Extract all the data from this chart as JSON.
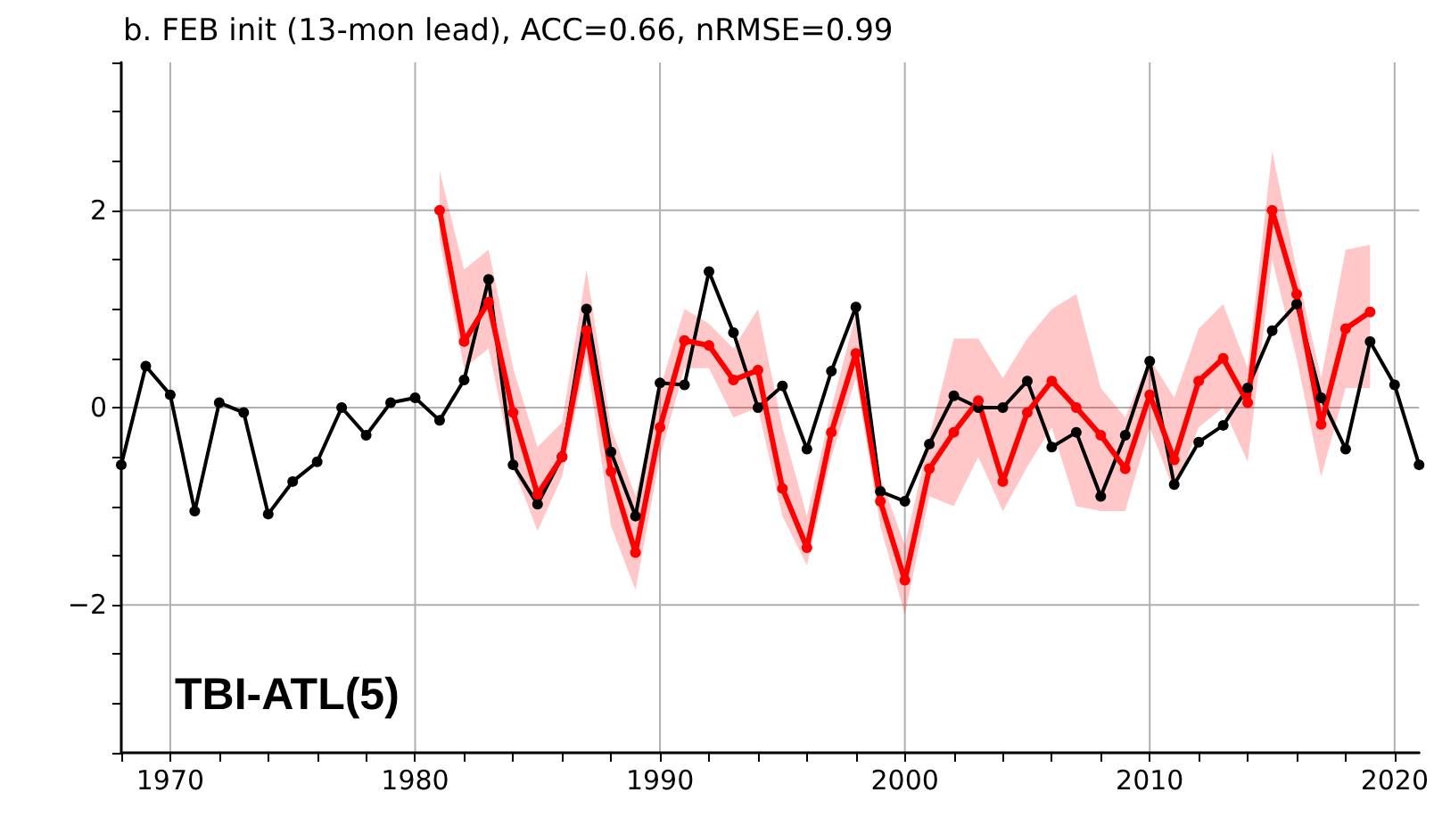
{
  "chart_data": {
    "type": "line",
    "title": "b. FEB init (13-mon lead), ACC=0.66, nRMSE=0.99",
    "annotations": [
      "TBI-ATL(5)"
    ],
    "xlim": [
      1968,
      2021
    ],
    "ylim": [
      -3.5,
      3.5
    ],
    "xticks": [
      {
        "value": 1968,
        "label": null
      },
      1970,
      {
        "value": 1972,
        "label": null
      },
      {
        "value": 1974,
        "label": null
      },
      {
        "value": 1976,
        "label": null
      },
      {
        "value": 1978,
        "label": null
      },
      1980,
      {
        "value": 1982,
        "label": null
      },
      {
        "value": 1984,
        "label": null
      },
      {
        "value": 1986,
        "label": null
      },
      {
        "value": 1988,
        "label": null
      },
      1990,
      {
        "value": 1992,
        "label": null
      },
      {
        "value": 1994,
        "label": null
      },
      {
        "value": 1996,
        "label": null
      },
      {
        "value": 1998,
        "label": null
      },
      2000,
      {
        "value": 2002,
        "label": null
      },
      {
        "value": 2004,
        "label": null
      },
      {
        "value": 2006,
        "label": null
      },
      {
        "value": 2008,
        "label": null
      },
      2010,
      {
        "value": 2012,
        "label": null
      },
      {
        "value": 2014,
        "label": null
      },
      {
        "value": 2016,
        "label": null
      },
      {
        "value": 2018,
        "label": null
      },
      2020
    ],
    "yticks": [
      {
        "value": -3.5,
        "label": null
      },
      {
        "value": -3,
        "label": null
      },
      {
        "value": -2.5,
        "label": null
      },
      {
        "value": -2,
        "label": "−2"
      },
      {
        "value": -1.5,
        "label": null
      },
      {
        "value": -1,
        "label": null
      },
      {
        "value": -0.5,
        "label": null
      },
      0,
      {
        "value": 0.5,
        "label": null
      },
      {
        "value": 1,
        "label": null
      },
      {
        "value": 1.5,
        "label": null
      },
      2,
      {
        "value": 2.5,
        "label": null
      },
      {
        "value": 3,
        "label": null
      },
      {
        "value": 3.5,
        "label": null
      }
    ],
    "grid": true,
    "marker": "circle",
    "line_style": "solid",
    "series": [
      {
        "color": "#000000",
        "x": [
          1968,
          1969,
          1970,
          1971,
          1972,
          1973,
          1974,
          1975,
          1976,
          1977,
          1978,
          1979,
          1980,
          1981,
          1982,
          1983,
          1984,
          1985,
          1986,
          1987,
          1988,
          1989,
          1990,
          1991,
          1992,
          1993,
          1994,
          1995,
          1996,
          1997,
          1998,
          1999,
          2000,
          2001,
          2002,
          2003,
          2004,
          2005,
          2006,
          2007,
          2008,
          2009,
          2010,
          2011,
          2012,
          2013,
          2014,
          2015,
          2016,
          2017,
          2018,
          2019,
          2020,
          2021
        ],
        "values": [
          -0.58,
          0.42,
          0.13,
          -1.05,
          0.05,
          -0.05,
          -1.08,
          -0.75,
          -0.55,
          0.0,
          -0.28,
          0.05,
          0.1,
          -0.13,
          0.28,
          1.3,
          -0.58,
          -0.98,
          -0.5,
          1.0,
          -0.45,
          -1.1,
          0.25,
          0.23,
          1.38,
          0.76,
          0.0,
          0.22,
          -0.42,
          0.37,
          1.02,
          -0.85,
          -0.95,
          -0.37,
          0.12,
          0.0,
          0.0,
          0.27,
          -0.4,
          -0.25,
          -0.9,
          -0.28,
          0.47,
          -0.78,
          -0.35,
          -0.18,
          0.2,
          0.78,
          1.05,
          0.1,
          -0.42,
          0.67,
          0.23,
          -0.58
        ]
      },
      {
        "color": "#ff0000",
        "x": [
          1981,
          1982,
          1983,
          1984,
          1985,
          1986,
          1987,
          1988,
          1989,
          1990,
          1991,
          1992,
          1993,
          1994,
          1995,
          1996,
          1997,
          1998,
          1999,
          2000,
          2001,
          2002,
          2003,
          2004,
          2005,
          2006,
          2007,
          2008,
          2009,
          2010,
          2011,
          2012,
          2013,
          2014,
          2015,
          2016,
          2017,
          2018,
          2019
        ],
        "values": [
          2.0,
          0.67,
          1.07,
          -0.05,
          -0.88,
          -0.5,
          0.78,
          -0.65,
          -1.47,
          -0.2,
          0.68,
          0.63,
          0.28,
          0.38,
          -0.82,
          -1.42,
          -0.25,
          0.55,
          -0.95,
          -1.75,
          -0.62,
          -0.25,
          0.07,
          -0.75,
          -0.05,
          0.27,
          0.0,
          -0.28,
          -0.62,
          0.13,
          -0.53,
          0.27,
          0.5,
          0.05,
          2.0,
          1.15,
          -0.17,
          0.8,
          0.97
        ],
        "lower": [
          1.7,
          0.4,
          0.6,
          -0.6,
          -1.25,
          -0.7,
          0.5,
          -1.2,
          -1.85,
          -0.5,
          0.4,
          0.4,
          -0.1,
          0.0,
          -1.1,
          -1.6,
          -0.5,
          0.3,
          -1.2,
          -2.1,
          -0.9,
          -1.0,
          -0.5,
          -1.05,
          -0.6,
          -0.2,
          -1.0,
          -1.05,
          -1.05,
          -0.2,
          -0.85,
          -0.2,
          0.0,
          -0.55,
          1.5,
          0.5,
          -0.7,
          0.2,
          0.2
        ],
        "upper": [
          2.4,
          1.4,
          1.6,
          0.4,
          -0.4,
          -0.15,
          1.4,
          -0.2,
          -0.9,
          0.2,
          1.0,
          0.85,
          0.6,
          1.0,
          -0.2,
          -1.1,
          0.0,
          0.95,
          -0.7,
          -1.4,
          -0.3,
          0.7,
          0.7,
          0.3,
          0.7,
          1.0,
          1.15,
          0.2,
          -0.1,
          0.5,
          0.1,
          0.8,
          1.05,
          0.4,
          2.6,
          1.4,
          0.3,
          1.6,
          1.65
        ]
      }
    ]
  }
}
